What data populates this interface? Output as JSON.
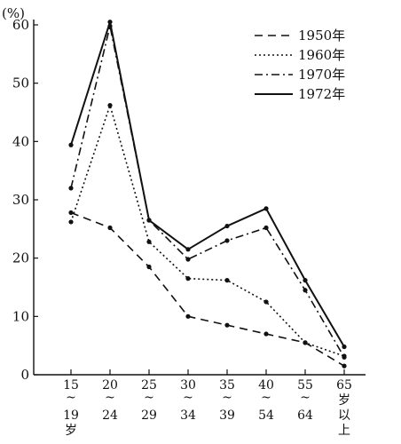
{
  "chart_data": {
    "type": "line",
    "title": "",
    "ylabel": "(%)",
    "xlabel": "",
    "ylim": [
      0,
      60
    ],
    "yticks": [
      0,
      10,
      20,
      30,
      40,
      50,
      60
    ],
    "grid": false,
    "legend_position": "top-right",
    "categories": [
      [
        "15",
        "~",
        "19",
        "岁"
      ],
      [
        "20",
        "~",
        "24"
      ],
      [
        "25",
        "~",
        "29"
      ],
      [
        "30",
        "~",
        "34"
      ],
      [
        "35",
        "~",
        "39"
      ],
      [
        "40",
        "~",
        "54"
      ],
      [
        "55",
        "~",
        "64"
      ],
      [
        "65",
        "岁",
        "以",
        "上"
      ]
    ],
    "series": [
      {
        "name": "1950年",
        "style": "dashed",
        "values": [
          27.8,
          25.2,
          18.5,
          10.0,
          8.5,
          7.0,
          5.5,
          1.5
        ]
      },
      {
        "name": "1960年",
        "style": "dotted",
        "values": [
          26.2,
          46.2,
          22.8,
          16.5,
          16.2,
          12.5,
          5.5,
          3.2
        ]
      },
      {
        "name": "1970年",
        "style": "dashdot",
        "values": [
          32.0,
          59.8,
          26.5,
          19.8,
          23.0,
          25.2,
          14.5,
          3.0
        ]
      },
      {
        "name": "1972年",
        "style": "solid",
        "values": [
          39.4,
          60.5,
          26.5,
          21.5,
          25.5,
          28.5,
          16.2,
          4.8
        ]
      }
    ],
    "color": "#111111"
  }
}
